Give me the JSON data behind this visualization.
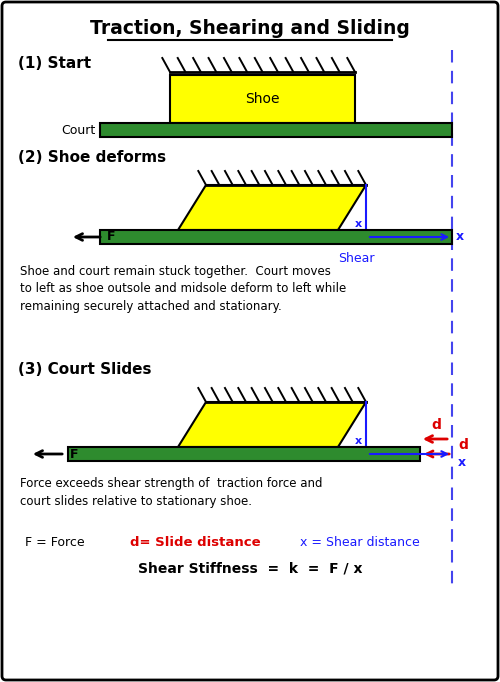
{
  "title": "Traction, Shearing and Sliding",
  "bg_color": "#ffffff",
  "border_color": "#000000",
  "green_color": "#2e8b2e",
  "yellow_color": "#ffff00",
  "black_color": "#000000",
  "blue_color": "#1a1aff",
  "red_color": "#dd0000",
  "dashed_line_color": "#4444ee",
  "section1_label": "(1) Start",
  "section2_label": "(2) Shoe deforms",
  "section3_label": "(3) Court Slides",
  "shoe_label": "Shoe",
  "court_label": "Court",
  "shear_label": "Shear",
  "F_label": "F",
  "d_label": "d",
  "x_label": "x",
  "text2": "Shoe and court remain stuck together.  Court moves\nto left as shoe outsole and midsole deform to left while\nremaining securely attached and stationary.",
  "text3": "Force exceeds shear strength of  traction force and\ncourt slides relative to stationary shoe.",
  "legend_F": "F = Force",
  "legend_d": "d= Slide distance",
  "legend_x": "x = Shear distance",
  "shear_stiffness": "Shear Stiffness  =  k  =  F / x",
  "figw": 5.0,
  "figh": 6.82,
  "dpi": 100
}
